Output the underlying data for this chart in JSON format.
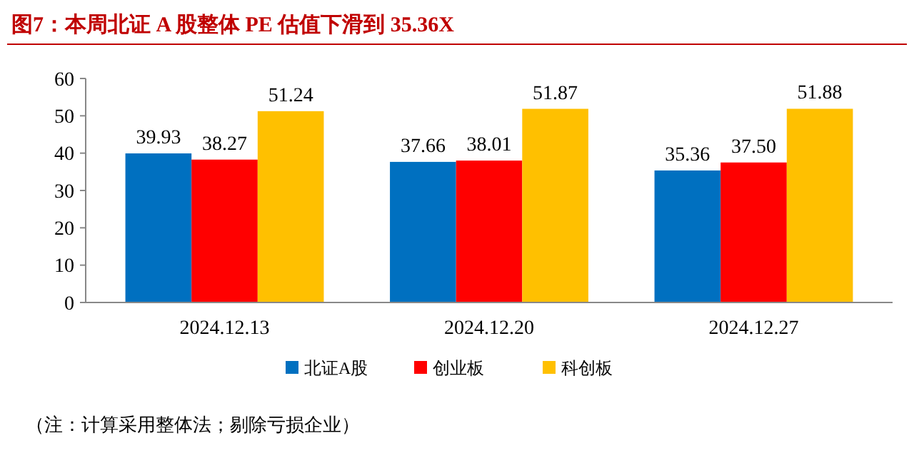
{
  "chart_data": {
    "type": "bar",
    "title": "图7：本周北证 A 股整体 PE 估值下滑到 35.36X",
    "categories": [
      "2024.12.13",
      "2024.12.20",
      "2024.12.27"
    ],
    "series": [
      {
        "name": "北证A股",
        "color": "#0070c0",
        "values": [
          39.93,
          37.66,
          35.36
        ]
      },
      {
        "name": "创业板",
        "color": "#ff0000",
        "values": [
          38.27,
          38.01,
          37.5
        ]
      },
      {
        "name": "科创板",
        "color": "#ffc000",
        "values": [
          51.24,
          51.87,
          51.88
        ]
      }
    ],
    "value_labels": [
      [
        "39.93",
        "37.66",
        "35.36"
      ],
      [
        "38.27",
        "38.01",
        "37.50"
      ],
      [
        "51.24",
        "51.87",
        "51.88"
      ]
    ],
    "ylim": [
      0,
      60
    ],
    "yticks": [
      0,
      10,
      20,
      30,
      40,
      50,
      60
    ],
    "grid": false,
    "legend": "bottom",
    "annotations": [
      "（注：计算采用整体法；剔除亏损企业）"
    ]
  }
}
